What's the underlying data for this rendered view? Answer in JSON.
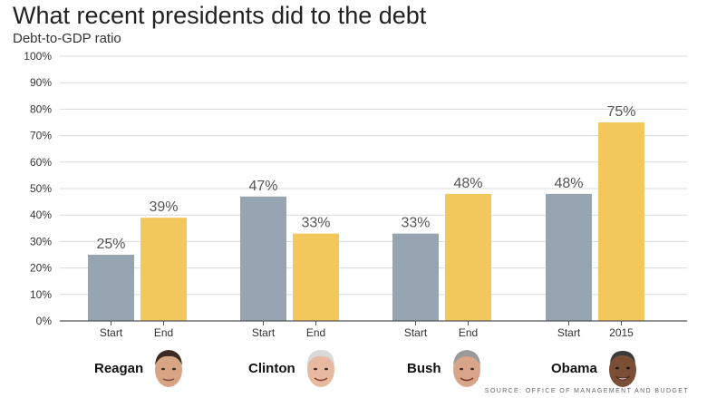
{
  "title": "What recent presidents did to the debt",
  "subtitle": "Debt-to-GDP ratio",
  "source": "SOURCE: OFFICE OF MANAGEMENT AND BUDGET",
  "colors": {
    "start": "#97a4b2",
    "end": "#f2c75c",
    "grid": "#d9d9d9",
    "axis": "#555555"
  },
  "chart_data": {
    "type": "bar",
    "title": "What recent presidents did to the debt",
    "ylabel": "Debt-to-GDP ratio",
    "ylim": [
      0,
      100
    ],
    "yticks": [
      "0%",
      "10%",
      "20%",
      "30%",
      "40%",
      "50%",
      "60%",
      "70%",
      "80%",
      "90%",
      "100%"
    ],
    "grid": true,
    "groups": [
      {
        "president": "Reagan",
        "bars": [
          {
            "label": "Start",
            "value": 25,
            "text": "25%"
          },
          {
            "label": "End",
            "value": 39,
            "text": "39%"
          }
        ]
      },
      {
        "president": "Clinton",
        "bars": [
          {
            "label": "Start",
            "value": 47,
            "text": "47%"
          },
          {
            "label": "End",
            "value": 33,
            "text": "33%"
          }
        ]
      },
      {
        "president": "Bush",
        "bars": [
          {
            "label": "Start",
            "value": 33,
            "text": "33%"
          },
          {
            "label": "End",
            "value": 48,
            "text": "48%"
          }
        ]
      },
      {
        "president": "Obama",
        "bars": [
          {
            "label": "Start",
            "value": 48,
            "text": "48%"
          },
          {
            "label": "2015",
            "value": 75,
            "text": "75%"
          }
        ]
      }
    ]
  }
}
